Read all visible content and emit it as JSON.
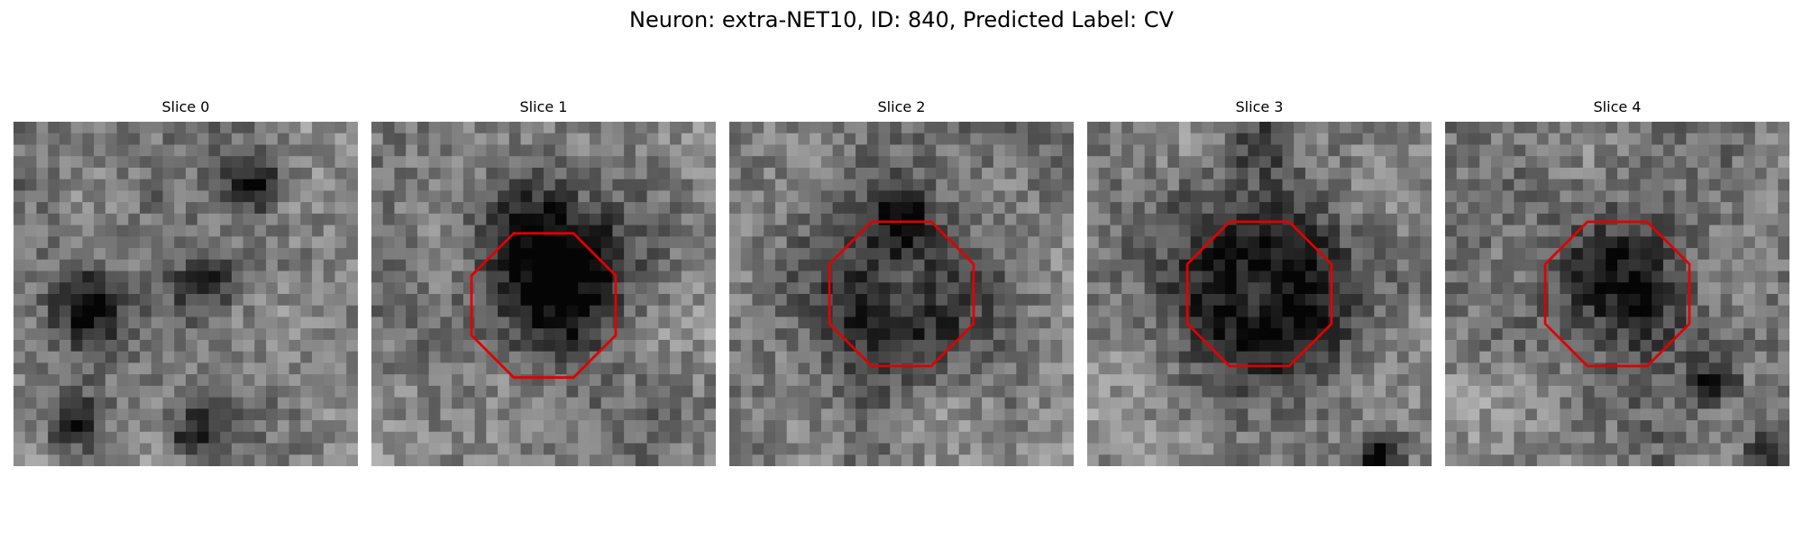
{
  "figure": {
    "title": "Neuron: extra-NET10, ID: 840, Predicted Label: CV"
  },
  "image_grid": {
    "pixels_per_side": 30,
    "colormap": "gray"
  },
  "roi_overlay": {
    "shape": "octagon",
    "color": "#e00000"
  },
  "slices": [
    {
      "title": "Slice 0",
      "roi_visible": false,
      "seed": 11,
      "dark_blobs": [
        [
          0.22,
          0.55,
          0.08,
          0.45
        ],
        [
          0.55,
          0.47,
          0.07,
          0.38
        ],
        [
          0.7,
          0.18,
          0.06,
          0.4
        ],
        [
          0.18,
          0.88,
          0.05,
          0.4
        ],
        [
          0.52,
          0.9,
          0.05,
          0.35
        ]
      ]
    },
    {
      "title": "Slice 1",
      "roi_visible": true,
      "seed": 23,
      "dark_blobs": [
        [
          0.53,
          0.38,
          0.14,
          0.55
        ],
        [
          0.55,
          0.58,
          0.1,
          0.25
        ]
      ]
    },
    {
      "title": "Slice 2",
      "roi_visible": true,
      "seed": 37,
      "dark_blobs": [
        [
          0.5,
          0.5,
          0.17,
          0.45
        ],
        [
          0.5,
          0.27,
          0.06,
          0.35
        ]
      ]
    },
    {
      "title": "Slice 3",
      "roi_visible": true,
      "seed": 51,
      "dark_blobs": [
        [
          0.5,
          0.5,
          0.19,
          0.62
        ],
        [
          0.5,
          0.06,
          0.06,
          0.3
        ],
        [
          0.85,
          0.97,
          0.05,
          0.4
        ]
      ]
    },
    {
      "title": "Slice 4",
      "roi_visible": true,
      "seed": 67,
      "dark_blobs": [
        [
          0.52,
          0.47,
          0.14,
          0.45
        ],
        [
          0.78,
          0.76,
          0.05,
          0.45
        ],
        [
          0.92,
          0.96,
          0.04,
          0.35
        ]
      ]
    }
  ]
}
